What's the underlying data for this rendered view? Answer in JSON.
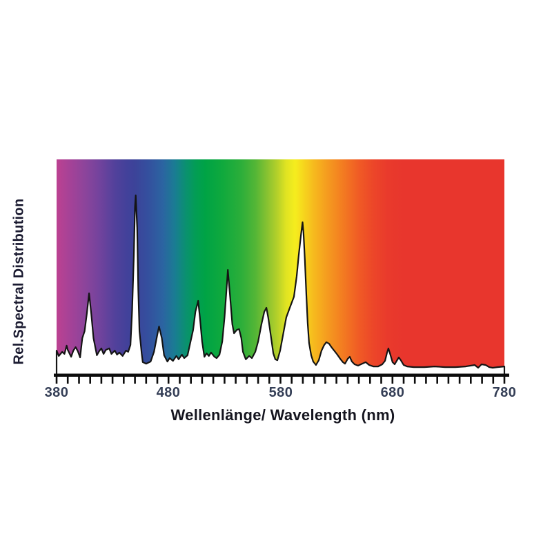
{
  "chart_data": {
    "type": "area",
    "title": "",
    "xlabel": "Wellenlänge/ Wavelength (nm)",
    "ylabel": "Rel.Spectral Distribution",
    "x_range": [
      380,
      780
    ],
    "y_range": [
      0,
      1
    ],
    "x_tick_labels": [
      "380",
      "480",
      "580",
      "680",
      "780"
    ],
    "x_tick_values": [
      380,
      480,
      580,
      680,
      780
    ],
    "minor_tick_step_nm": 10,
    "grid": false,
    "legend": "none",
    "curve_color": "#141414",
    "under_curve_fill": "#ffffff",
    "axis_color": "#0c0c0c",
    "tick_label_color": "#343e56",
    "axis_title_color": "#15151f",
    "spectrum_gradient": [
      {
        "nm": 380,
        "color": "#BC4191"
      },
      {
        "nm": 392,
        "color": "#A54297"
      },
      {
        "nm": 405,
        "color": "#8D449B"
      },
      {
        "nm": 418,
        "color": "#73439D"
      },
      {
        "nm": 432,
        "color": "#52419B"
      },
      {
        "nm": 443,
        "color": "#42419A"
      },
      {
        "nm": 450,
        "color": "#3C4399"
      },
      {
        "nm": 462,
        "color": "#34509E"
      },
      {
        "nm": 475,
        "color": "#2B64A1"
      },
      {
        "nm": 486,
        "color": "#197D92"
      },
      {
        "nm": 495,
        "color": "#0B9071"
      },
      {
        "nm": 504,
        "color": "#029D55"
      },
      {
        "nm": 513,
        "color": "#00A345"
      },
      {
        "nm": 528,
        "color": "#0FA93D"
      },
      {
        "nm": 545,
        "color": "#2CAE3A"
      },
      {
        "nm": 558,
        "color": "#55B636"
      },
      {
        "nm": 568,
        "color": "#87C231"
      },
      {
        "nm": 577,
        "color": "#B4D02A"
      },
      {
        "nm": 585,
        "color": "#E0E322"
      },
      {
        "nm": 593,
        "color": "#F5ED1E"
      },
      {
        "nm": 600,
        "color": "#F6D81D"
      },
      {
        "nm": 610,
        "color": "#F6B91E"
      },
      {
        "nm": 622,
        "color": "#F59B1F"
      },
      {
        "nm": 636,
        "color": "#F37B21"
      },
      {
        "nm": 650,
        "color": "#F05B25"
      },
      {
        "nm": 663,
        "color": "#EC4629"
      },
      {
        "nm": 676,
        "color": "#E93A2C"
      },
      {
        "nm": 690,
        "color": "#E8362D"
      },
      {
        "nm": 780,
        "color": "#E8362D"
      }
    ],
    "series": [
      {
        "name": "relative spectral distribution",
        "points": [
          [
            380,
            0.112
          ],
          [
            382,
            0.087
          ],
          [
            385,
            0.106
          ],
          [
            387,
            0.096
          ],
          [
            389,
            0.135
          ],
          [
            390,
            0.115
          ],
          [
            393,
            0.083
          ],
          [
            395,
            0.112
          ],
          [
            397,
            0.128
          ],
          [
            399,
            0.109
          ],
          [
            401,
            0.08
          ],
          [
            403,
            0.17
          ],
          [
            405,
            0.202
          ],
          [
            407,
            0.282
          ],
          [
            409,
            0.378
          ],
          [
            411,
            0.282
          ],
          [
            413,
            0.17
          ],
          [
            416,
            0.09
          ],
          [
            418,
            0.109
          ],
          [
            420,
            0.122
          ],
          [
            422,
            0.096
          ],
          [
            424,
            0.115
          ],
          [
            427,
            0.122
          ],
          [
            429,
            0.096
          ],
          [
            432,
            0.112
          ],
          [
            434,
            0.093
          ],
          [
            436,
            0.103
          ],
          [
            439,
            0.087
          ],
          [
            442,
            0.112
          ],
          [
            444,
            0.106
          ],
          [
            446,
            0.138
          ],
          [
            447.5,
            0.298
          ],
          [
            449,
            0.554
          ],
          [
            450,
            0.779
          ],
          [
            450.7,
            0.833
          ],
          [
            452,
            0.683
          ],
          [
            453,
            0.394
          ],
          [
            454,
            0.202
          ],
          [
            456,
            0.099
          ],
          [
            457,
            0.058
          ],
          [
            460,
            0.051
          ],
          [
            464,
            0.061
          ],
          [
            467,
            0.106
          ],
          [
            470,
            0.186
          ],
          [
            471.5,
            0.224
          ],
          [
            474,
            0.17
          ],
          [
            476,
            0.09
          ],
          [
            479,
            0.061
          ],
          [
            481,
            0.077
          ],
          [
            484,
            0.064
          ],
          [
            487,
            0.087
          ],
          [
            489,
            0.071
          ],
          [
            492,
            0.093
          ],
          [
            494,
            0.077
          ],
          [
            497,
            0.09
          ],
          [
            499,
            0.138
          ],
          [
            502,
            0.208
          ],
          [
            504,
            0.292
          ],
          [
            506.5,
            0.343
          ],
          [
            508,
            0.266
          ],
          [
            510,
            0.154
          ],
          [
            512,
            0.083
          ],
          [
            514,
            0.099
          ],
          [
            516,
            0.087
          ],
          [
            518,
            0.103
          ],
          [
            521,
            0.083
          ],
          [
            523,
            0.077
          ],
          [
            525.5,
            0.093
          ],
          [
            528,
            0.154
          ],
          [
            530,
            0.266
          ],
          [
            532,
            0.41
          ],
          [
            533,
            0.487
          ],
          [
            535,
            0.362
          ],
          [
            537,
            0.234
          ],
          [
            538.5,
            0.192
          ],
          [
            541,
            0.208
          ],
          [
            543,
            0.212
          ],
          [
            545,
            0.17
          ],
          [
            546.5,
            0.106
          ],
          [
            549,
            0.071
          ],
          [
            552,
            0.087
          ],
          [
            554.5,
            0.077
          ],
          [
            557.5,
            0.106
          ],
          [
            560,
            0.154
          ],
          [
            563,
            0.234
          ],
          [
            565.5,
            0.292
          ],
          [
            567.4,
            0.311
          ],
          [
            569,
            0.266
          ],
          [
            571.7,
            0.17
          ],
          [
            573.6,
            0.099
          ],
          [
            575.4,
            0.071
          ],
          [
            577.2,
            0.067
          ],
          [
            579.7,
            0.112
          ],
          [
            582,
            0.176
          ],
          [
            585.2,
            0.266
          ],
          [
            588.3,
            0.311
          ],
          [
            592,
            0.362
          ],
          [
            594.5,
            0.458
          ],
          [
            596.3,
            0.554
          ],
          [
            598.2,
            0.644
          ],
          [
            599.7,
            0.708
          ],
          [
            600.6,
            0.657
          ],
          [
            601.8,
            0.529
          ],
          [
            603.1,
            0.369
          ],
          [
            604.3,
            0.24
          ],
          [
            605.5,
            0.147
          ],
          [
            607.4,
            0.09
          ],
          [
            609.2,
            0.061
          ],
          [
            611.7,
            0.045
          ],
          [
            614.2,
            0.067
          ],
          [
            616.7,
            0.112
          ],
          [
            619.1,
            0.138
          ],
          [
            621,
            0.151
          ],
          [
            623.4,
            0.144
          ],
          [
            625.9,
            0.125
          ],
          [
            628.4,
            0.109
          ],
          [
            630.8,
            0.093
          ],
          [
            633.3,
            0.074
          ],
          [
            635.8,
            0.058
          ],
          [
            637.6,
            0.051
          ],
          [
            640.1,
            0.074
          ],
          [
            641.9,
            0.083
          ],
          [
            643.8,
            0.061
          ],
          [
            646.2,
            0.048
          ],
          [
            649.3,
            0.042
          ],
          [
            653,
            0.051
          ],
          [
            656.1,
            0.058
          ],
          [
            659.2,
            0.045
          ],
          [
            662.9,
            0.038
          ],
          [
            667.2,
            0.038
          ],
          [
            670.9,
            0.048
          ],
          [
            673.4,
            0.064
          ],
          [
            675.2,
            0.103
          ],
          [
            676.4,
            0.122
          ],
          [
            678.3,
            0.09
          ],
          [
            680.1,
            0.058
          ],
          [
            682,
            0.048
          ],
          [
            683.8,
            0.064
          ],
          [
            685.7,
            0.08
          ],
          [
            687.5,
            0.067
          ],
          [
            690,
            0.045
          ],
          [
            693.1,
            0.038
          ],
          [
            699.2,
            0.035
          ],
          [
            708.5,
            0.035
          ],
          [
            717.7,
            0.038
          ],
          [
            727,
            0.035
          ],
          [
            736.2,
            0.035
          ],
          [
            745.5,
            0.038
          ],
          [
            753.5,
            0.045
          ],
          [
            756.6,
            0.032
          ],
          [
            759.6,
            0.048
          ],
          [
            763.3,
            0.045
          ],
          [
            766.4,
            0.035
          ],
          [
            769.5,
            0.032
          ],
          [
            773.8,
            0.035
          ],
          [
            780,
            0.038
          ]
        ]
      }
    ]
  }
}
